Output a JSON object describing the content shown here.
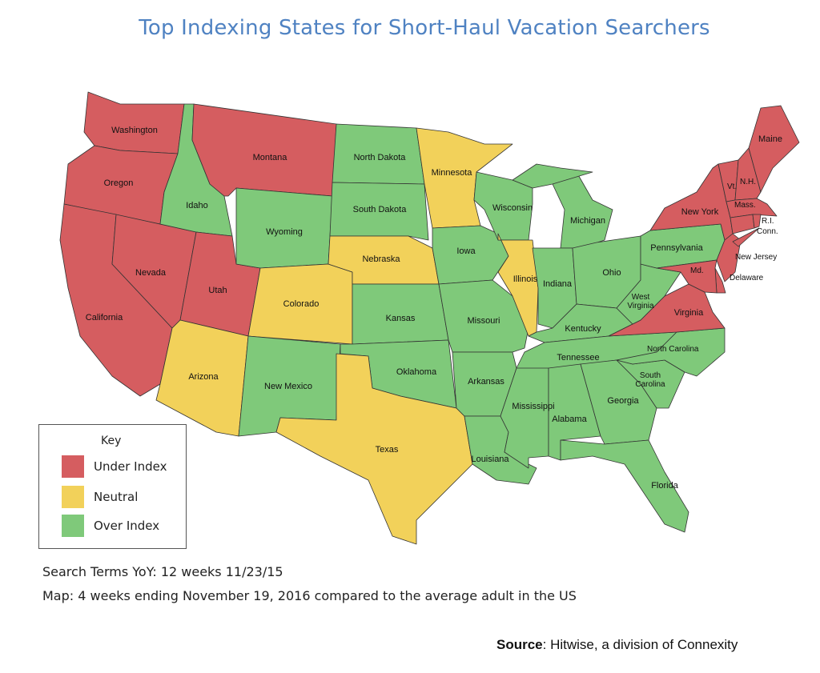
{
  "title": "Top Indexing States for Short-Haul Vacation Searchers",
  "colors": {
    "under": "#d55d60",
    "neutral": "#f2d15a",
    "over": "#7fc97a",
    "title": "#4f82c2"
  },
  "key": {
    "title": "Key",
    "items": [
      {
        "id": "under",
        "label": "Under Index"
      },
      {
        "id": "neutral",
        "label": "Neutral"
      },
      {
        "id": "over",
        "label": "Over Index"
      }
    ]
  },
  "states": [
    {
      "id": "WA",
      "label": "Washington",
      "category": "under"
    },
    {
      "id": "OR",
      "label": "Oregon",
      "category": "under"
    },
    {
      "id": "CA",
      "label": "California",
      "category": "under"
    },
    {
      "id": "NV",
      "label": "Nevada",
      "category": "under"
    },
    {
      "id": "ID",
      "label": "Idaho",
      "category": "over"
    },
    {
      "id": "MT",
      "label": "Montana",
      "category": "under"
    },
    {
      "id": "UT",
      "label": "Utah",
      "category": "under"
    },
    {
      "id": "AZ",
      "label": "Arizona",
      "category": "neutral"
    },
    {
      "id": "WY",
      "label": "Wyoming",
      "category": "over"
    },
    {
      "id": "CO",
      "label": "Colorado",
      "category": "neutral"
    },
    {
      "id": "NM",
      "label": "New Mexico",
      "category": "over"
    },
    {
      "id": "ND",
      "label": "North Dakota",
      "category": "over"
    },
    {
      "id": "SD",
      "label": "South Dakota",
      "category": "over"
    },
    {
      "id": "NE",
      "label": "Nebraska",
      "category": "neutral"
    },
    {
      "id": "KS",
      "label": "Kansas",
      "category": "over"
    },
    {
      "id": "OK",
      "label": "Oklahoma",
      "category": "over"
    },
    {
      "id": "TX",
      "label": "Texas",
      "category": "neutral"
    },
    {
      "id": "MN",
      "label": "Minnesota",
      "category": "neutral"
    },
    {
      "id": "IA",
      "label": "Iowa",
      "category": "over"
    },
    {
      "id": "MO",
      "label": "Missouri",
      "category": "over"
    },
    {
      "id": "AR",
      "label": "Arkansas",
      "category": "over"
    },
    {
      "id": "LA",
      "label": "Louisiana",
      "category": "over"
    },
    {
      "id": "WI",
      "label": "Wisconsin",
      "category": "over"
    },
    {
      "id": "IL",
      "label": "Illinois",
      "category": "neutral"
    },
    {
      "id": "MI",
      "label": "Michigan",
      "category": "over"
    },
    {
      "id": "IN",
      "label": "Indiana",
      "category": "over"
    },
    {
      "id": "OH",
      "label": "Ohio",
      "category": "over"
    },
    {
      "id": "KY",
      "label": "Kentucky",
      "category": "over"
    },
    {
      "id": "TN",
      "label": "Tennessee",
      "category": "over"
    },
    {
      "id": "MS",
      "label": "Mississippi",
      "category": "over"
    },
    {
      "id": "AL",
      "label": "Alabama",
      "category": "over"
    },
    {
      "id": "GA",
      "label": "Georgia",
      "category": "over"
    },
    {
      "id": "FL",
      "label": "Florida",
      "category": "over"
    },
    {
      "id": "SC",
      "label": "South Carolina",
      "category": "over"
    },
    {
      "id": "NC",
      "label": "North Carolina",
      "category": "over"
    },
    {
      "id": "VA",
      "label": "Virginia",
      "category": "under"
    },
    {
      "id": "WV",
      "label": "West Virginia",
      "category": "over"
    },
    {
      "id": "PA",
      "label": "Pennsylvania",
      "category": "over"
    },
    {
      "id": "NY",
      "label": "New York",
      "category": "under"
    },
    {
      "id": "VT",
      "label": "Vt.",
      "category": "under"
    },
    {
      "id": "NH",
      "label": "N.H.",
      "category": "under"
    },
    {
      "id": "ME",
      "label": "Maine",
      "category": "under"
    },
    {
      "id": "MA",
      "label": "Mass.",
      "category": "under"
    },
    {
      "id": "CT",
      "label": "Conn.",
      "category": "under"
    },
    {
      "id": "RI",
      "label": "R.I.",
      "category": "under"
    },
    {
      "id": "NJ",
      "label": "New Jersey",
      "category": "under"
    },
    {
      "id": "DE",
      "label": "Delaware",
      "category": "under"
    },
    {
      "id": "MD",
      "label": "Md.",
      "category": "under"
    }
  ],
  "notes": {
    "search_terms": "Search Terms YoY:  12 weeks 11/23/15",
    "map_period": "Map:  4 weeks ending November 19, 2016 compared to the average adult in the US"
  },
  "source": {
    "label": "Source",
    "text": ": Hitwise, a division of Connexity"
  }
}
